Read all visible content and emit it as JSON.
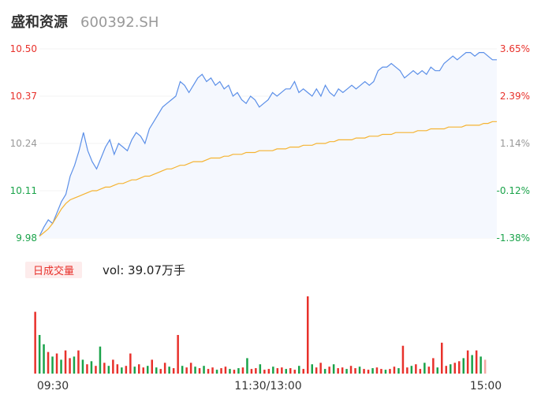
{
  "stock": {
    "name": "盛和资源",
    "code": "600392.SH"
  },
  "volume_panel": {
    "tab_label": "日成交量",
    "vol_text": "vol: 39.07万手"
  },
  "colors": {
    "up": "#e8312b",
    "down": "#1aa34a",
    "price_line": "#5b8fe8",
    "avg_line": "#f5b331",
    "neutral": "#999999",
    "grid": "#f3f3f3"
  },
  "chart_data": [
    {
      "type": "line",
      "name": "intraday",
      "y_left_ticks": [
        "10.50",
        "10.37",
        "10.24",
        "10.11",
        "9.98"
      ],
      "y_right_ticks": [
        "3.65%",
        "2.39%",
        "1.14%",
        "-0.12%",
        "-1.38%"
      ],
      "ylim": [
        9.98,
        10.5
      ],
      "x_ticks": [
        "09:30",
        "11:30/13:00",
        "15:00"
      ],
      "series": [
        {
          "key": "price",
          "values": [
            9.985,
            10.01,
            10.03,
            10.02,
            10.05,
            10.08,
            10.1,
            10.15,
            10.18,
            10.22,
            10.27,
            10.22,
            10.19,
            10.17,
            10.2,
            10.23,
            10.25,
            10.21,
            10.24,
            10.23,
            10.22,
            10.25,
            10.27,
            10.26,
            10.24,
            10.28,
            10.3,
            10.32,
            10.34,
            10.35,
            10.36,
            10.37,
            10.41,
            10.4,
            10.38,
            10.4,
            10.42,
            10.43,
            10.41,
            10.42,
            10.4,
            10.41,
            10.39,
            10.4,
            10.37,
            10.38,
            10.36,
            10.35,
            10.37,
            10.36,
            10.34,
            10.35,
            10.36,
            10.38,
            10.37,
            10.38,
            10.39,
            10.39,
            10.41,
            10.38,
            10.39,
            10.38,
            10.37,
            10.39,
            10.37,
            10.4,
            10.38,
            10.37,
            10.39,
            10.38,
            10.39,
            10.4,
            10.39,
            10.4,
            10.41,
            10.4,
            10.41,
            10.44,
            10.45,
            10.45,
            10.46,
            10.45,
            10.44,
            10.42,
            10.43,
            10.44,
            10.43,
            10.44,
            10.43,
            10.45,
            10.44,
            10.44,
            10.46,
            10.47,
            10.48,
            10.47,
            10.48,
            10.49,
            10.49,
            10.48,
            10.49,
            10.49,
            10.48,
            10.47,
            10.47
          ],
          "color": "#5b8fe8"
        },
        {
          "key": "avg",
          "values": [
            9.985,
            9.995,
            10.005,
            10.02,
            10.04,
            10.06,
            10.075,
            10.085,
            10.09,
            10.095,
            10.1,
            10.105,
            10.11,
            10.11,
            10.115,
            10.12,
            10.12,
            10.125,
            10.13,
            10.13,
            10.135,
            10.14,
            10.14,
            10.145,
            10.15,
            10.15,
            10.155,
            10.16,
            10.165,
            10.17,
            10.17,
            10.175,
            10.18,
            10.18,
            10.185,
            10.19,
            10.19,
            10.19,
            10.195,
            10.2,
            10.2,
            10.2,
            10.205,
            10.205,
            10.21,
            10.21,
            10.21,
            10.215,
            10.215,
            10.215,
            10.22,
            10.22,
            10.22,
            10.22,
            10.225,
            10.225,
            10.225,
            10.23,
            10.23,
            10.23,
            10.235,
            10.235,
            10.235,
            10.24,
            10.24,
            10.24,
            10.245,
            10.245,
            10.25,
            10.25,
            10.25,
            10.25,
            10.255,
            10.255,
            10.255,
            10.26,
            10.26,
            10.26,
            10.265,
            10.265,
            10.265,
            10.27,
            10.27,
            10.27,
            10.27,
            10.27,
            10.275,
            10.275,
            10.275,
            10.28,
            10.28,
            10.28,
            10.28,
            10.285,
            10.285,
            10.285,
            10.285,
            10.29,
            10.29,
            10.29,
            10.29,
            10.295,
            10.295,
            10.3,
            10.3
          ],
          "color": "#f5b331"
        }
      ]
    },
    {
      "type": "bar",
      "name": "volume",
      "bars": [
        {
          "v": 80,
          "d": "up"
        },
        {
          "v": 50,
          "d": "down"
        },
        {
          "v": 38,
          "d": "down"
        },
        {
          "v": 28,
          "d": "up"
        },
        {
          "v": 22,
          "d": "down"
        },
        {
          "v": 26,
          "d": "up"
        },
        {
          "v": 18,
          "d": "down"
        },
        {
          "v": 30,
          "d": "up"
        },
        {
          "v": 20,
          "d": "up"
        },
        {
          "v": 22,
          "d": "down"
        },
        {
          "v": 30,
          "d": "up"
        },
        {
          "v": 18,
          "d": "down"
        },
        {
          "v": 12,
          "d": "up"
        },
        {
          "v": 16,
          "d": "down"
        },
        {
          "v": 10,
          "d": "up"
        },
        {
          "v": 35,
          "d": "down"
        },
        {
          "v": 14,
          "d": "up"
        },
        {
          "v": 10,
          "d": "down"
        },
        {
          "v": 18,
          "d": "up"
        },
        {
          "v": 12,
          "d": "up"
        },
        {
          "v": 8,
          "d": "down"
        },
        {
          "v": 10,
          "d": "up"
        },
        {
          "v": 26,
          "d": "up"
        },
        {
          "v": 9,
          "d": "down"
        },
        {
          "v": 12,
          "d": "up"
        },
        {
          "v": 8,
          "d": "up"
        },
        {
          "v": 10,
          "d": "down"
        },
        {
          "v": 18,
          "d": "up"
        },
        {
          "v": 8,
          "d": "down"
        },
        {
          "v": 6,
          "d": "up"
        },
        {
          "v": 14,
          "d": "up"
        },
        {
          "v": 9,
          "d": "down"
        },
        {
          "v": 7,
          "d": "up"
        },
        {
          "v": 50,
          "d": "up"
        },
        {
          "v": 10,
          "d": "down"
        },
        {
          "v": 8,
          "d": "up"
        },
        {
          "v": 14,
          "d": "up"
        },
        {
          "v": 9,
          "d": "down"
        },
        {
          "v": 7,
          "d": "up"
        },
        {
          "v": 10,
          "d": "down"
        },
        {
          "v": 6,
          "d": "up"
        },
        {
          "v": 8,
          "d": "up"
        },
        {
          "v": 5,
          "d": "down"
        },
        {
          "v": 7,
          "d": "up"
        },
        {
          "v": 9,
          "d": "up"
        },
        {
          "v": 6,
          "d": "down"
        },
        {
          "v": 5,
          "d": "up"
        },
        {
          "v": 7,
          "d": "down"
        },
        {
          "v": 8,
          "d": "up"
        },
        {
          "v": 20,
          "d": "down"
        },
        {
          "v": 6,
          "d": "up"
        },
        {
          "v": 7,
          "d": "up"
        },
        {
          "v": 12,
          "d": "down"
        },
        {
          "v": 5,
          "d": "up"
        },
        {
          "v": 6,
          "d": "up"
        },
        {
          "v": 9,
          "d": "down"
        },
        {
          "v": 7,
          "d": "up"
        },
        {
          "v": 8,
          "d": "up"
        },
        {
          "v": 6,
          "d": "down"
        },
        {
          "v": 7,
          "d": "up"
        },
        {
          "v": 5,
          "d": "up"
        },
        {
          "v": 10,
          "d": "down"
        },
        {
          "v": 6,
          "d": "up"
        },
        {
          "v": 100,
          "d": "up"
        },
        {
          "v": 12,
          "d": "down"
        },
        {
          "v": 8,
          "d": "up"
        },
        {
          "v": 14,
          "d": "up"
        },
        {
          "v": 6,
          "d": "down"
        },
        {
          "v": 9,
          "d": "up"
        },
        {
          "v": 12,
          "d": "down"
        },
        {
          "v": 7,
          "d": "up"
        },
        {
          "v": 8,
          "d": "up"
        },
        {
          "v": 6,
          "d": "down"
        },
        {
          "v": 10,
          "d": "up"
        },
        {
          "v": 7,
          "d": "up"
        },
        {
          "v": 9,
          "d": "down"
        },
        {
          "v": 6,
          "d": "up"
        },
        {
          "v": 5,
          "d": "up"
        },
        {
          "v": 7,
          "d": "down"
        },
        {
          "v": 8,
          "d": "up"
        },
        {
          "v": 6,
          "d": "up"
        },
        {
          "v": 5,
          "d": "down"
        },
        {
          "v": 6,
          "d": "up"
        },
        {
          "v": 9,
          "d": "up"
        },
        {
          "v": 7,
          "d": "down"
        },
        {
          "v": 36,
          "d": "up"
        },
        {
          "v": 8,
          "d": "up"
        },
        {
          "v": 10,
          "d": "down"
        },
        {
          "v": 12,
          "d": "up"
        },
        {
          "v": 6,
          "d": "up"
        },
        {
          "v": 14,
          "d": "down"
        },
        {
          "v": 9,
          "d": "up"
        },
        {
          "v": 20,
          "d": "up"
        },
        {
          "v": 8,
          "d": "down"
        },
        {
          "v": 40,
          "d": "up"
        },
        {
          "v": 10,
          "d": "up"
        },
        {
          "v": 12,
          "d": "down"
        },
        {
          "v": 14,
          "d": "up"
        },
        {
          "v": 16,
          "d": "up"
        },
        {
          "v": 20,
          "d": "down"
        },
        {
          "v": 30,
          "d": "up"
        },
        {
          "v": 24,
          "d": "down"
        },
        {
          "v": 30,
          "d": "up"
        },
        {
          "v": 22,
          "d": "down"
        },
        {
          "v": 18,
          "d": "neutral"
        }
      ]
    }
  ]
}
